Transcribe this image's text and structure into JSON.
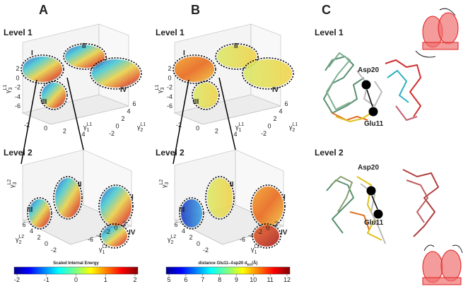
{
  "panels": [
    {
      "letter": "A",
      "plots": [
        {
          "level": "Level 1",
          "clusters": [
            "I",
            "II",
            "III",
            "IV"
          ],
          "z_ticks": [
            "2",
            "0",
            "-2",
            "-4",
            "-6"
          ],
          "x_ticks": [
            "-2",
            "0",
            "2",
            "4"
          ],
          "y_ticks": [
            "6",
            "4",
            "2",
            "0",
            "-2"
          ],
          "z_label": {
            "symbol": "γ",
            "sub": "3",
            "sup": "L1"
          },
          "x_label": {
            "symbol": "γ",
            "sub": "1",
            "sup": "L1"
          },
          "y_label": {
            "symbol": "γ",
            "sub": "2",
            "sup": "L1"
          }
        },
        {
          "level": "Level 2",
          "clusters": [
            "II",
            "I",
            "III",
            "IV"
          ],
          "y_ticks": [
            "6",
            "4",
            "2",
            "0",
            "-2"
          ],
          "x_ticks": [
            "-6",
            "-4",
            "-2",
            "0",
            "2"
          ],
          "z_label": {
            "symbol": "γ",
            "sub": "3",
            "sup": "L2"
          },
          "x_label": {
            "symbol": "γ",
            "sub": "1",
            "sup": "L2"
          },
          "y_label": {
            "symbol": "γ",
            "sub": "2",
            "sup": "L2"
          }
        }
      ],
      "colorbar": {
        "ticks": [
          "-2",
          "-1",
          "0",
          "1",
          "2"
        ],
        "title": "Scaled Internal Energy"
      }
    },
    {
      "letter": "B",
      "plots": [
        {
          "level": "Level 1",
          "clusters": [
            "I",
            "II",
            "III",
            "IV"
          ],
          "z_ticks": [
            "2",
            "0",
            "-2",
            "-4",
            "-6"
          ],
          "x_ticks": [
            "-2",
            "0",
            "2",
            "4"
          ],
          "y_ticks": [
            "6",
            "4",
            "2",
            "0",
            "-2"
          ],
          "z_label": {
            "symbol": "γ",
            "sub": "3",
            "sup": "L1"
          },
          "x_label": {
            "symbol": "γ",
            "sub": "1",
            "sup": "L1"
          },
          "y_label": {
            "symbol": "γ",
            "sub": "2",
            "sup": "L1"
          }
        },
        {
          "level": "Level 2",
          "clusters": [
            "II",
            "I",
            "III",
            "IV"
          ],
          "y_ticks": [
            "6",
            "4",
            "2",
            "0",
            "-2"
          ],
          "x_ticks": [
            "-6",
            "-4",
            "-2",
            "0",
            "2"
          ],
          "z_label": {
            "symbol": "γ",
            "sub": "3",
            "sup": "L2"
          },
          "x_label": {
            "symbol": "γ",
            "sub": "1",
            "sup": "L2"
          },
          "y_label": {
            "symbol": "γ",
            "sub": "2",
            "sup": "L2"
          }
        }
      ],
      "colorbar": {
        "ticks": [
          "5",
          "6",
          "7",
          "8",
          "9",
          "10",
          "11",
          "12"
        ],
        "title": "distance Glu11–Asp20 d",
        "title_sub": "EG",
        "title_end": "(Å)"
      }
    },
    {
      "letter": "C",
      "structures": [
        {
          "level": "Level 1",
          "top_residue": "Asp20",
          "bottom_residue": "Glu11"
        },
        {
          "level": "Level 2",
          "top_residue": "Asp20",
          "bottom_residue": "Glu11"
        }
      ]
    }
  ]
}
